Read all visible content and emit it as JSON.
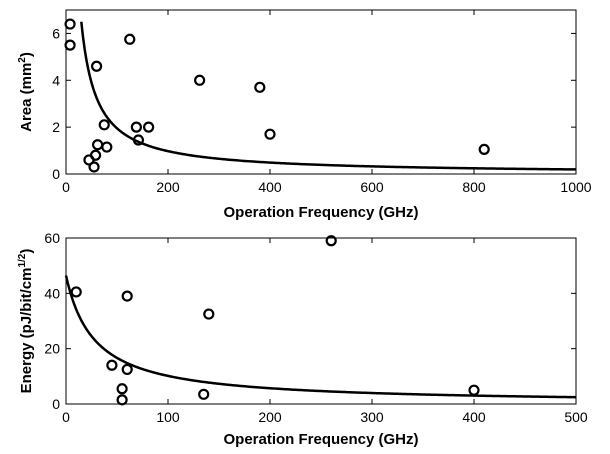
{
  "chart_data": [
    {
      "type": "scatter",
      "xlabel": "Operation Frequency (GHz)",
      "ylabel_main": "Area (mm",
      "ylabel_sup": "2",
      "ylabel_tail": ")",
      "xlim": [
        0,
        1000
      ],
      "ylim": [
        0,
        7
      ],
      "xticks": [
        0,
        200,
        400,
        600,
        800,
        1000
      ],
      "yticks": [
        0,
        2,
        4,
        6
      ],
      "grid": false,
      "points": [
        {
          "x": 8,
          "y": 6.4
        },
        {
          "x": 8,
          "y": 5.5
        },
        {
          "x": 45,
          "y": 0.6
        },
        {
          "x": 55,
          "y": 0.3
        },
        {
          "x": 58,
          "y": 0.8
        },
        {
          "x": 60,
          "y": 4.6
        },
        {
          "x": 62,
          "y": 1.25
        },
        {
          "x": 75,
          "y": 2.1
        },
        {
          "x": 80,
          "y": 1.15
        },
        {
          "x": 125,
          "y": 5.75
        },
        {
          "x": 138,
          "y": 2.0
        },
        {
          "x": 142,
          "y": 1.45
        },
        {
          "x": 162,
          "y": 2.0
        },
        {
          "x": 262,
          "y": 4.0
        },
        {
          "x": 380,
          "y": 3.7
        },
        {
          "x": 400,
          "y": 1.7
        },
        {
          "x": 820,
          "y": 1.05
        }
      ],
      "fit": {
        "form": "y = a / x",
        "a": 195
      }
    },
    {
      "type": "scatter",
      "xlabel": "Operation Frequency (GHz)",
      "ylabel_main": "Energy (pJ/bit/cm",
      "ylabel_sup": "1/2",
      "ylabel_tail": ")",
      "xlim": [
        0,
        500
      ],
      "ylim": [
        0,
        60
      ],
      "xticks": [
        0,
        100,
        200,
        300,
        400,
        500
      ],
      "yticks": [
        0,
        20,
        40,
        60
      ],
      "grid": false,
      "points": [
        {
          "x": 10,
          "y": 40.5
        },
        {
          "x": 45,
          "y": 14.0
        },
        {
          "x": 55,
          "y": 5.5
        },
        {
          "x": 55,
          "y": 1.5
        },
        {
          "x": 60,
          "y": 39.0
        },
        {
          "x": 60,
          "y": 12.5
        },
        {
          "x": 135,
          "y": 3.5
        },
        {
          "x": 140,
          "y": 32.5
        },
        {
          "x": 260,
          "y": 59.0
        },
        {
          "x": 400,
          "y": 5.0
        }
      ],
      "fit": {
        "form": "y = a / (x + b)",
        "a": 1300,
        "b": 28
      }
    }
  ]
}
